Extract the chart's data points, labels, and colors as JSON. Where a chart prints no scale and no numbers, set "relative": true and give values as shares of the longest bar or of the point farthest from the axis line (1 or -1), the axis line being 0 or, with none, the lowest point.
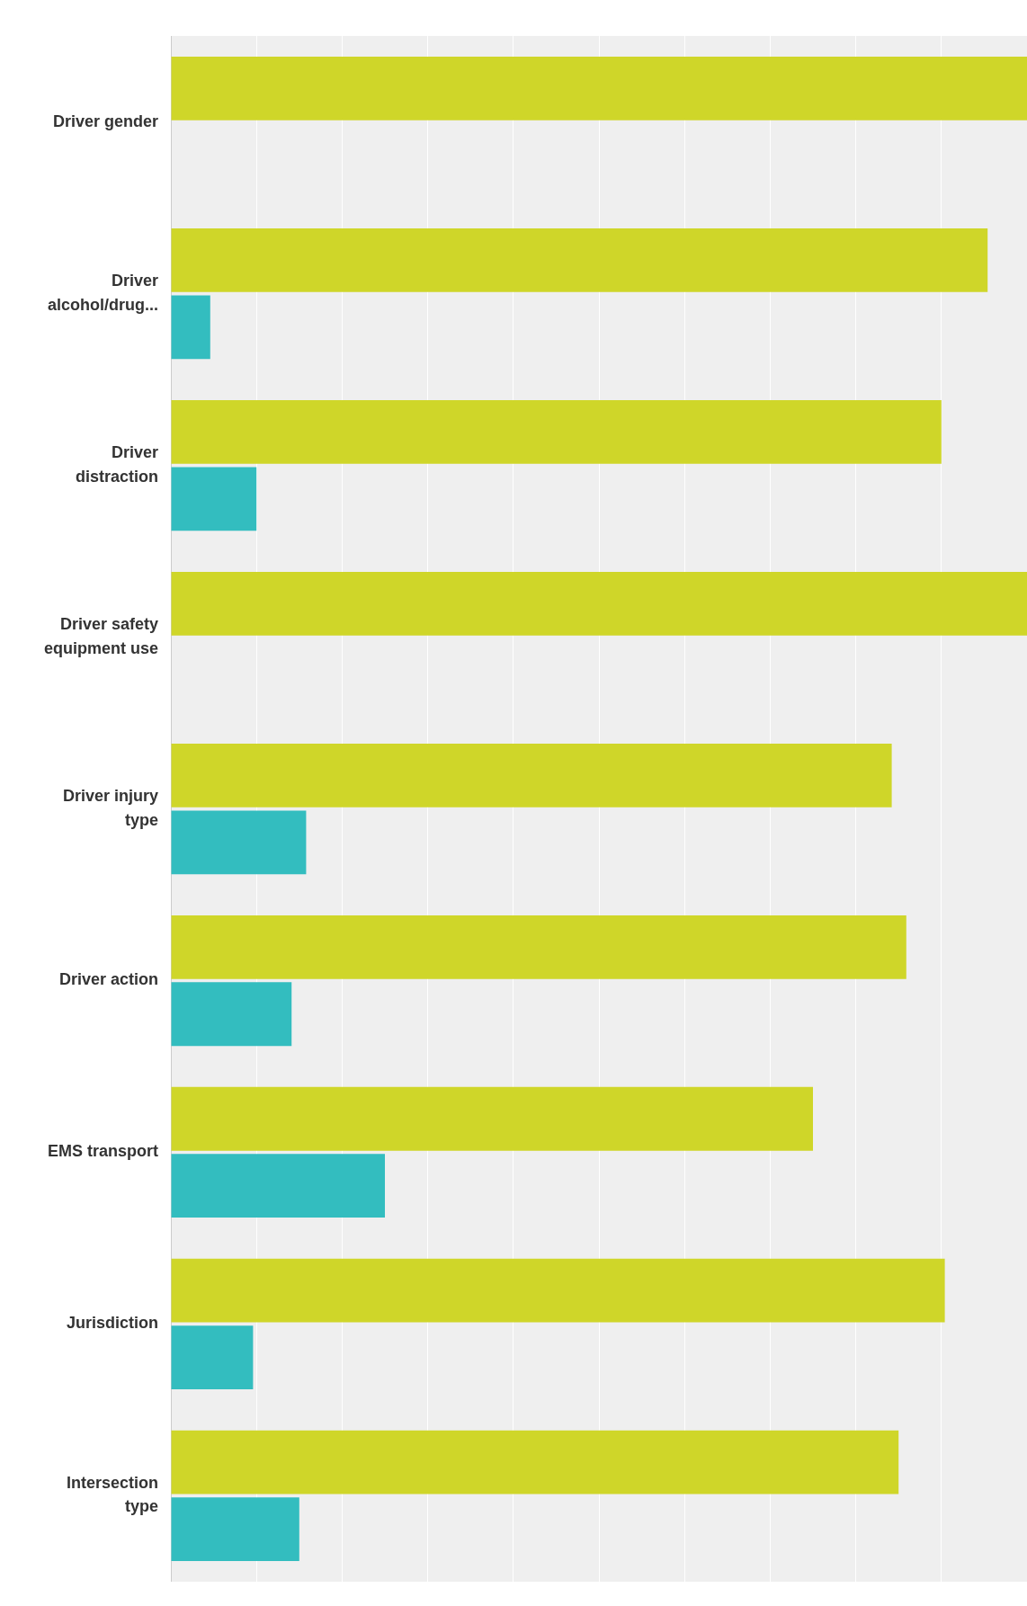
{
  "chart_data": {
    "type": "bar",
    "orientation": "horizontal",
    "relative": true,
    "grid": "x",
    "legend": false,
    "categories": [
      "Driver gender",
      "Driver alcohol/drug...",
      "Driver distraction",
      "Driver safety equipment use",
      "Driver injury type",
      "Driver action",
      "EMS transport",
      "Jurisdiction",
      "Intersection type"
    ],
    "series": [
      {
        "color": "#33bdbf",
        "values": [
          0,
          0.046,
          0.1,
          0,
          0.158,
          0.141,
          0.25,
          0.096,
          0.15
        ]
      },
      {
        "color": "#cfd629",
        "values": [
          1,
          0.954,
          0.9,
          1,
          0.842,
          0.859,
          0.75,
          0.904,
          0.85
        ]
      }
    ]
  }
}
